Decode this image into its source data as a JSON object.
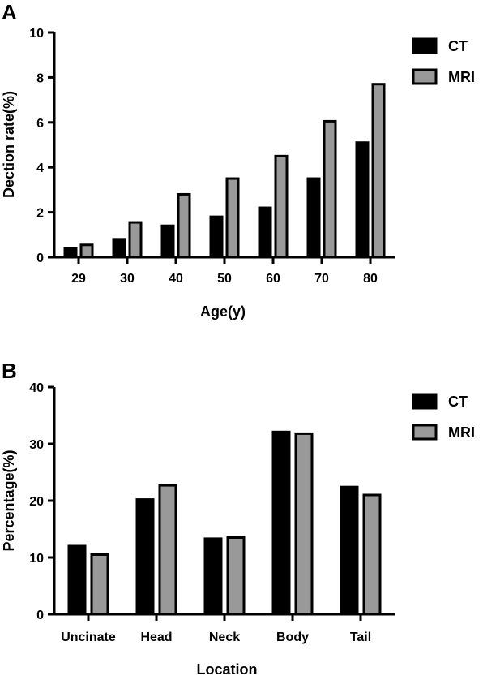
{
  "colors": {
    "ct": "#000000",
    "mri": "#999999",
    "axis": "#000000"
  },
  "chart_data": [
    {
      "panel": "A",
      "type": "bar",
      "categories": [
        "29",
        "30",
        "40",
        "50",
        "60",
        "70",
        "80"
      ],
      "series": [
        {
          "name": "CT",
          "values": [
            0.4,
            0.8,
            1.4,
            1.8,
            2.2,
            3.5,
            5.1
          ]
        },
        {
          "name": "MRI",
          "values": [
            0.55,
            1.55,
            2.8,
            3.5,
            4.5,
            6.05,
            7.7
          ]
        }
      ],
      "ylim": [
        0,
        10
      ],
      "yticks": [
        "0",
        "2",
        "4",
        "6",
        "8",
        "10"
      ],
      "xlabel": "Age(y)",
      "ylabel": "Dection rate(%)",
      "legend": "top-right",
      "grid": false
    },
    {
      "panel": "B",
      "type": "bar",
      "categories": [
        "Uncinate",
        "Head",
        "Neck",
        "Body",
        "Tail"
      ],
      "series": [
        {
          "name": "CT",
          "values": [
            12,
            20.2,
            13.3,
            32.1,
            22.4
          ]
        },
        {
          "name": "MRI",
          "values": [
            10.5,
            22.7,
            13.5,
            31.8,
            21
          ]
        }
      ],
      "ylim": [
        0,
        40
      ],
      "yticks": [
        "0",
        "10",
        "20",
        "30",
        "40"
      ],
      "xlabel": "Location",
      "ylabel": "Percentage(%)",
      "legend": "top-right",
      "grid": false
    }
  ]
}
